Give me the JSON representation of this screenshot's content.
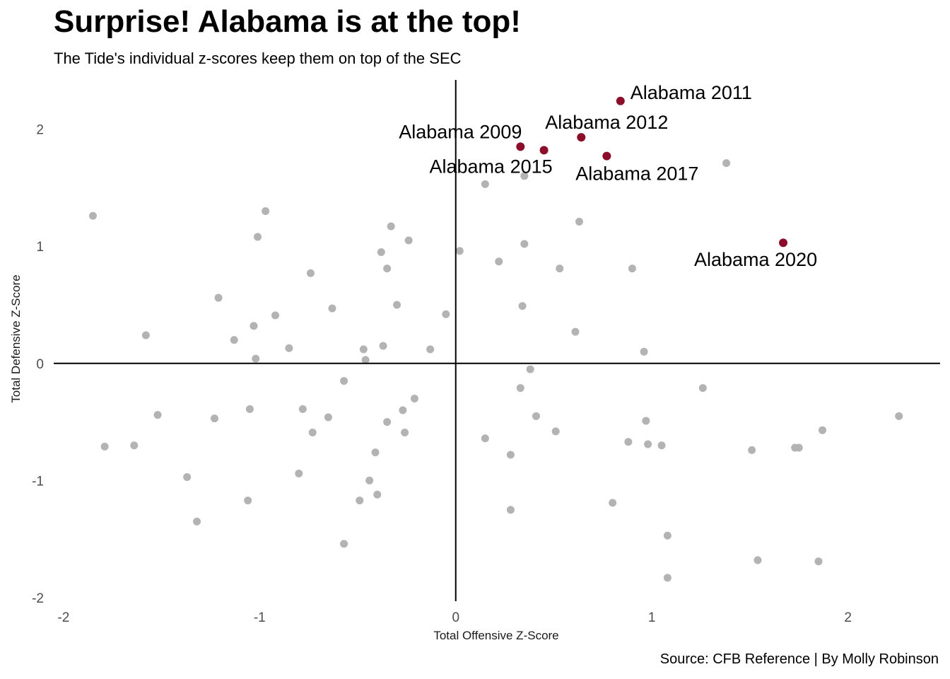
{
  "title": "Surprise! Alabama is at the top!",
  "subtitle": "The Tide's individual z-scores keep them on top of the SEC",
  "caption": "Source: CFB Reference | By Molly Robinson",
  "chart_data": {
    "type": "scatter",
    "xlabel": "Total Offensive Z-Score",
    "ylabel": "Total Defensive Z-Score",
    "xlim": [
      -2.05,
      2.47
    ],
    "ylim": [
      -2.03,
      2.42
    ],
    "x_ticks": [
      -2,
      -1,
      0,
      1,
      2
    ],
    "y_ticks": [
      -2,
      -1,
      0,
      1,
      2
    ],
    "x_tick_labels": [
      "-2",
      "-1",
      "0",
      "1",
      "2"
    ],
    "y_tick_labels": [
      "-2",
      "-1",
      "0",
      "1",
      "2"
    ],
    "reference_lines": {
      "x": 0,
      "y": 0
    },
    "colors": {
      "highlight": "#8b0d2a",
      "other": "#b3b3b3",
      "reference": "#000000"
    },
    "grid": false,
    "highlighted": [
      {
        "label": "Alabama 2011",
        "x": 0.84,
        "y": 2.24
      },
      {
        "label": "Alabama 2012",
        "x": 0.64,
        "y": 1.93
      },
      {
        "label": "Alabama 2009",
        "x": 0.33,
        "y": 1.85
      },
      {
        "label": "Alabama 2015",
        "x": 0.45,
        "y": 1.82
      },
      {
        "label": "Alabama 2017",
        "x": 0.77,
        "y": 1.77
      },
      {
        "label": "Alabama 2020",
        "x": 1.67,
        "y": 1.03
      }
    ],
    "points": [
      {
        "x": -1.85,
        "y": 1.26
      },
      {
        "x": -0.97,
        "y": 1.3
      },
      {
        "x": -1.01,
        "y": 1.08
      },
      {
        "x": -0.33,
        "y": 1.17
      },
      {
        "x": -0.24,
        "y": 1.05
      },
      {
        "x": -0.38,
        "y": 0.95
      },
      {
        "x": -0.35,
        "y": 0.81
      },
      {
        "x": -0.74,
        "y": 0.77
      },
      {
        "x": -1.21,
        "y": 0.56
      },
      {
        "x": -0.63,
        "y": 0.47
      },
      {
        "x": -0.3,
        "y": 0.5
      },
      {
        "x": -0.92,
        "y": 0.41
      },
      {
        "x": -1.03,
        "y": 0.32
      },
      {
        "x": -1.58,
        "y": 0.24
      },
      {
        "x": -1.13,
        "y": 0.2
      },
      {
        "x": -0.85,
        "y": 0.13
      },
      {
        "x": -0.47,
        "y": 0.12
      },
      {
        "x": -0.37,
        "y": 0.15
      },
      {
        "x": -0.13,
        "y": 0.12
      },
      {
        "x": -1.02,
        "y": 0.04
      },
      {
        "x": -0.46,
        "y": 0.03
      },
      {
        "x": -0.05,
        "y": 0.42
      },
      {
        "x": 0.02,
        "y": 0.96
      },
      {
        "x": -0.57,
        "y": -0.15
      },
      {
        "x": -0.21,
        "y": -0.3
      },
      {
        "x": -0.27,
        "y": -0.4
      },
      {
        "x": -1.52,
        "y": -0.44
      },
      {
        "x": -1.23,
        "y": -0.47
      },
      {
        "x": -1.05,
        "y": -0.39
      },
      {
        "x": -0.78,
        "y": -0.39
      },
      {
        "x": -0.65,
        "y": -0.46
      },
      {
        "x": -0.35,
        "y": -0.5
      },
      {
        "x": -0.73,
        "y": -0.59
      },
      {
        "x": -0.26,
        "y": -0.59
      },
      {
        "x": -1.79,
        "y": -0.71
      },
      {
        "x": -1.64,
        "y": -0.7
      },
      {
        "x": -0.41,
        "y": -0.76
      },
      {
        "x": -1.37,
        "y": -0.97
      },
      {
        "x": -0.8,
        "y": -0.94
      },
      {
        "x": -0.44,
        "y": -1.0
      },
      {
        "x": -1.06,
        "y": -1.17
      },
      {
        "x": -0.49,
        "y": -1.17
      },
      {
        "x": -0.4,
        "y": -1.12
      },
      {
        "x": -1.32,
        "y": -1.35
      },
      {
        "x": -0.57,
        "y": -1.54
      },
      {
        "x": 0.15,
        "y": 1.53
      },
      {
        "x": 0.35,
        "y": 1.6
      },
      {
        "x": 1.38,
        "y": 1.71
      },
      {
        "x": 0.63,
        "y": 1.21
      },
      {
        "x": 0.35,
        "y": 1.02
      },
      {
        "x": 0.22,
        "y": 0.87
      },
      {
        "x": 0.53,
        "y": 0.81
      },
      {
        "x": 0.9,
        "y": 0.81
      },
      {
        "x": 0.34,
        "y": 0.49
      },
      {
        "x": 0.61,
        "y": 0.27
      },
      {
        "x": 0.96,
        "y": 0.1
      },
      {
        "x": 0.38,
        "y": -0.05
      },
      {
        "x": 0.33,
        "y": -0.21
      },
      {
        "x": 1.26,
        "y": -0.21
      },
      {
        "x": 0.41,
        "y": -0.45
      },
      {
        "x": 0.97,
        "y": -0.49
      },
      {
        "x": 0.51,
        "y": -0.58
      },
      {
        "x": 0.15,
        "y": -0.64
      },
      {
        "x": 0.88,
        "y": -0.67
      },
      {
        "x": 0.98,
        "y": -0.69
      },
      {
        "x": 1.05,
        "y": -0.7
      },
      {
        "x": 0.28,
        "y": -0.78
      },
      {
        "x": 1.51,
        "y": -0.74
      },
      {
        "x": 1.73,
        "y": -0.72
      },
      {
        "x": 1.75,
        "y": -0.72
      },
      {
        "x": 1.87,
        "y": -0.57
      },
      {
        "x": 2.26,
        "y": -0.45
      },
      {
        "x": 0.8,
        "y": -1.19
      },
      {
        "x": 0.28,
        "y": -1.25
      },
      {
        "x": 1.08,
        "y": -1.47
      },
      {
        "x": 1.08,
        "y": -1.83
      },
      {
        "x": 1.54,
        "y": -1.68
      },
      {
        "x": 1.85,
        "y": -1.69
      }
    ]
  }
}
